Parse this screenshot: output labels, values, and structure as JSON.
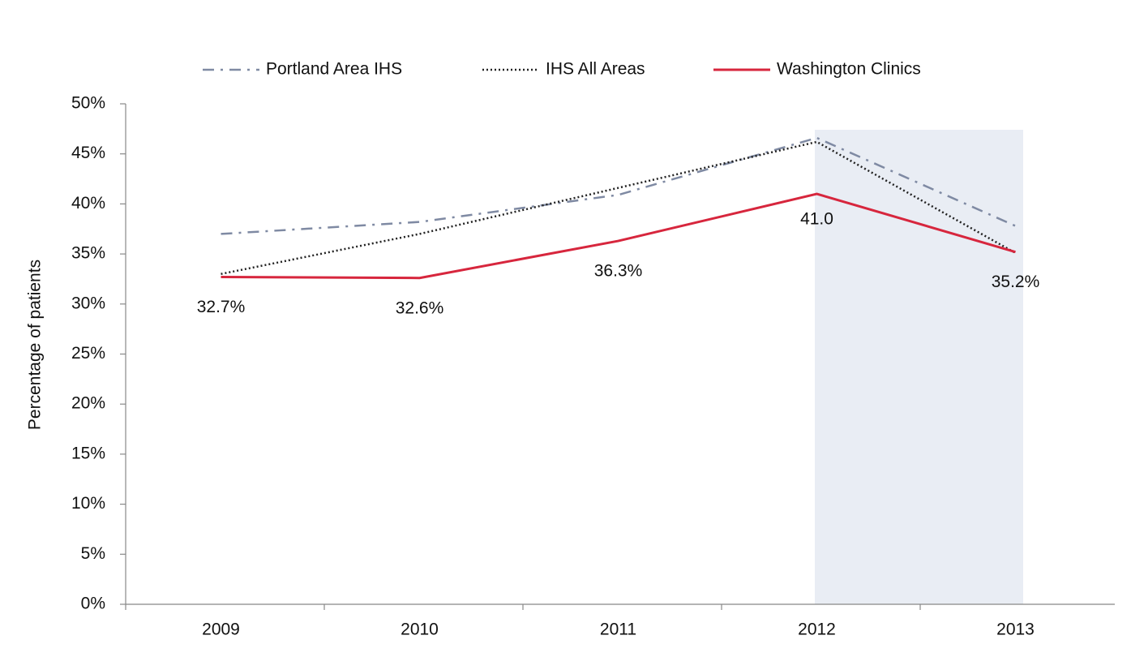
{
  "chart_data": {
    "type": "line",
    "y_label": "Percentage of patients",
    "categories": [
      "2009",
      "2010",
      "2011",
      "2012",
      "2013"
    ],
    "series": [
      {
        "name": "Portland Area IHS",
        "color": "#7f8aa3",
        "style": "dashdot",
        "values": [
          37.0,
          38.2,
          40.9,
          46.6,
          37.8
        ]
      },
      {
        "name": "IHS All Areas",
        "color": "#222222",
        "style": "dotted",
        "values": [
          33.0,
          37.0,
          41.6,
          46.2,
          35.1
        ]
      },
      {
        "name": "Washington Clinics",
        "color": "#d7263d",
        "style": "solid",
        "values": [
          32.7,
          32.6,
          36.3,
          41.0,
          35.2
        ],
        "value_labels": [
          "32.7%",
          "32.6%",
          "36.3%",
          "41.0",
          "35.2%"
        ]
      }
    ],
    "ylim": [
      0,
      50
    ],
    "yticks": [
      {
        "value": 0,
        "label": "0%"
      },
      {
        "value": 5,
        "label": "5%"
      },
      {
        "value": 10,
        "label": "10%"
      },
      {
        "value": 15,
        "label": "15%"
      },
      {
        "value": 20,
        "label": "20%"
      },
      {
        "value": 25,
        "label": "25%"
      },
      {
        "value": 30,
        "label": "30%"
      },
      {
        "value": 35,
        "label": "35%"
      },
      {
        "value": 40,
        "label": "40%"
      },
      {
        "value": 45,
        "label": "45%"
      },
      {
        "value": 50,
        "label": "50%"
      }
    ],
    "grid": false,
    "legend": "top"
  }
}
